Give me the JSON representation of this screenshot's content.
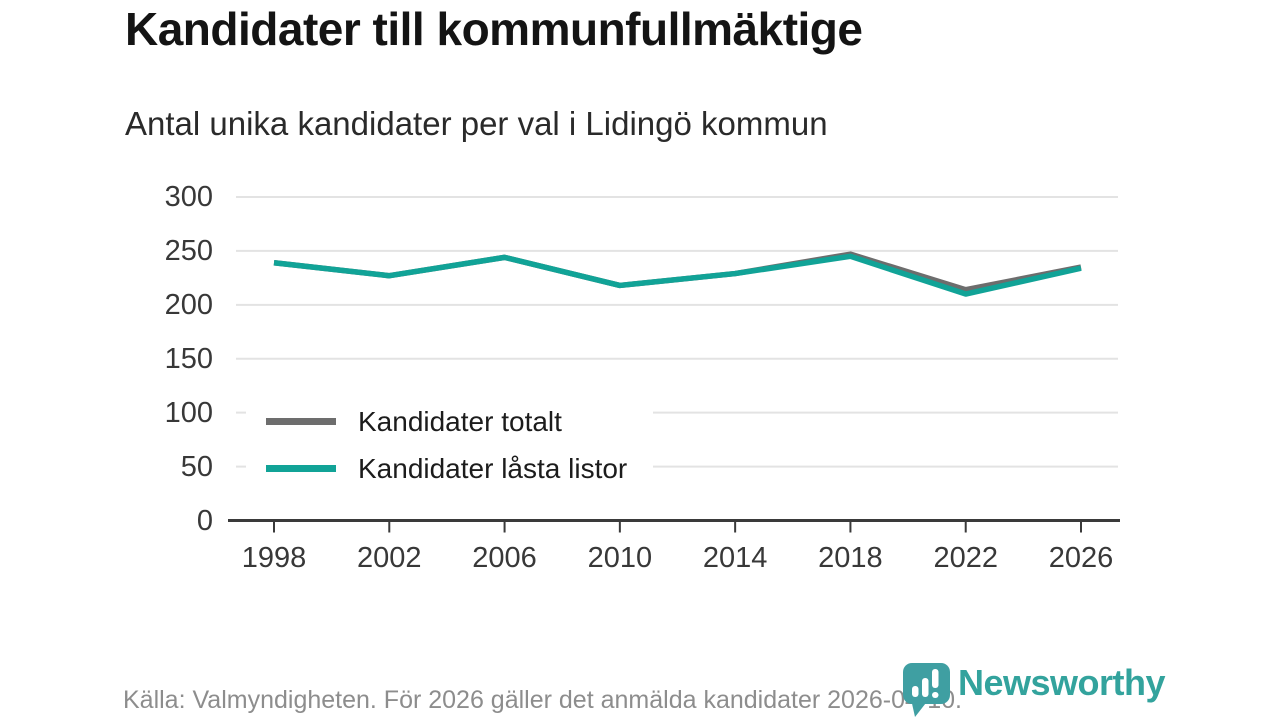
{
  "header": {
    "title": "Kandidater till kommunfullmäktige",
    "subtitle": "Antal unika kandidater per val i Lidingö kommun"
  },
  "chart_data": {
    "type": "line",
    "x": [
      1998,
      2002,
      2006,
      2010,
      2014,
      2018,
      2022,
      2026
    ],
    "series": [
      {
        "name": "Kandidater totalt",
        "color": "#6d6d6d",
        "values": [
          239,
          227,
          244,
          218,
          229,
          247,
          214,
          235
        ]
      },
      {
        "name": "Kandidater låsta listor",
        "color": "#11a397",
        "values": [
          239,
          227,
          244,
          218,
          229,
          245,
          210,
          234
        ]
      }
    ],
    "title": "Kandidater till kommunfullmäktige",
    "subtitle": "Antal unika kandidater per val i Lidingö kommun",
    "xlabel": "",
    "ylabel": "",
    "ylim": [
      0,
      300
    ],
    "y_ticks": [
      0,
      50,
      100,
      150,
      200,
      250,
      300
    ],
    "grid": "horizontal",
    "legend_position": "inside-bottom-left"
  },
  "footer": {
    "source_text": "Källa: Valmyndigheten. För 2026 gäller det anmälda kandidater 2026-04-10."
  },
  "branding": {
    "logo_text": "Newsworthy",
    "logo_icon": "newsworthy-bubble-chart-icon",
    "brand_color": "#33a39d",
    "icon_color": "#3f9fa2"
  }
}
